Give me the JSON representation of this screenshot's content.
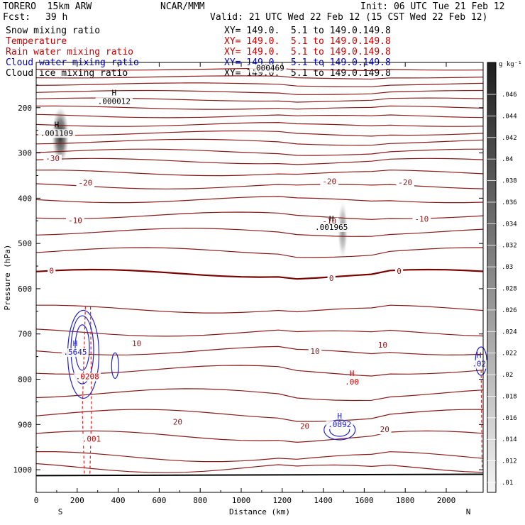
{
  "header": {
    "model": "TORERO  15km ARW",
    "center": "NCAR/MMM",
    "init": "Init: 06 UTC Tue 21 Feb 12",
    "fcst_label": "Fcst:",
    "fcst_value": "39 h",
    "valid": "Valid: 21 UTC Wed 22 Feb 12 (15 CST Wed 22 Feb 12)"
  },
  "fields": [
    {
      "name": "Snow mixing ratio",
      "xy": "XY= 149.0.  5.1 to 149.0.149.8",
      "color": "#000000"
    },
    {
      "name": "Temperature",
      "xy": "XY= 149.0.  5.1 to 149.0.149.8",
      "color": "#cc0000"
    },
    {
      "name": "Rain water mixing ratio",
      "xy": "XY= 149.0.  5.1 to 149.0.149.8",
      "color": "#cc0000"
    },
    {
      "name": "Cloud water mixing ratio",
      "xy": "XY= 149.0.  5.1 to 149.0.149.8",
      "color": "#0000cc"
    },
    {
      "name": "Cloud ice mixing ratio",
      "xy": "XY= 149.0.  5.1 to 149.0.149.8",
      "color": "#000000"
    }
  ],
  "colors": {
    "isotherm": "#8b1a1a",
    "zero_isotherm": "#7a0000",
    "cloud_water": "#2222cc",
    "rain_water": "#dd2222",
    "label_red": "#cc0000"
  },
  "chart_data": {
    "type": "line",
    "xlabel": "Distance (km)",
    "ylabel": "Pressure (hPa)",
    "xlim": [
      0,
      2180
    ],
    "ylim": [
      1050,
      100
    ],
    "y_scale": "linear, inverted",
    "x_ticks": [
      0,
      200,
      400,
      600,
      800,
      1000,
      1200,
      1400,
      1600,
      1800,
      2000
    ],
    "y_ticks": [
      200,
      300,
      400,
      500,
      600,
      700,
      800,
      900,
      1000
    ],
    "x_end_labels": {
      "left": "S",
      "right": "N"
    },
    "grid": false,
    "isotherm_pressures_left": [
      115,
      132,
      148,
      165,
      182,
      200,
      218,
      237,
      256,
      275,
      297,
      318,
      344,
      373,
      403,
      438,
      474,
      517,
      566,
      645,
      696,
      737,
      779,
      831,
      877,
      925,
      971,
      995
    ],
    "temperature_labels": [
      {
        "x": 80,
        "p": 318,
        "text": "-30"
      },
      {
        "x": 240,
        "p": 372,
        "text": "-20"
      },
      {
        "x": 1430,
        "p": 369,
        "text": "-20"
      },
      {
        "x": 1800,
        "p": 371,
        "text": "-20"
      },
      {
        "x": 190,
        "p": 455,
        "text": "-10"
      },
      {
        "x": 1430,
        "p": 457,
        "text": "-10"
      },
      {
        "x": 1880,
        "p": 452,
        "text": "-10"
      },
      {
        "x": 75,
        "p": 566,
        "text": "0"
      },
      {
        "x": 1440,
        "p": 583,
        "text": "0"
      },
      {
        "x": 1770,
        "p": 567,
        "text": "0"
      },
      {
        "x": 490,
        "p": 727,
        "text": "10"
      },
      {
        "x": 1360,
        "p": 744,
        "text": "10"
      },
      {
        "x": 1690,
        "p": 730,
        "text": "10"
      },
      {
        "x": 690,
        "p": 900,
        "text": "20"
      },
      {
        "x": 1310,
        "p": 910,
        "text": "20"
      },
      {
        "x": 1700,
        "p": 917,
        "text": "20"
      }
    ],
    "snow_max_labels": [
      {
        "x": 380,
        "p": 192,
        "text": ".000012",
        "mark": "H"
      },
      {
        "x": 100,
        "p": 262,
        "text": ".001109",
        "mark": "H"
      },
      {
        "x": 1130,
        "p": 118,
        "text": ".000469",
        "mark": ""
      }
    ],
    "cloud_ice_labels": [
      {
        "x": 1440,
        "p": 470,
        "text": ".001965",
        "mark": "H"
      }
    ],
    "rain_labels": [
      {
        "x": 1540,
        "p": 812,
        "text": ".00",
        "mark": "H"
      },
      {
        "x": 270,
        "p": 938,
        "text": ".001",
        "mark": ""
      },
      {
        "x": 250,
        "p": 800,
        "text": ".0208",
        "mark": ""
      }
    ],
    "cloud_water_labels": [
      {
        "x": 190,
        "p": 746,
        "text": ".5645",
        "mark": "H"
      },
      {
        "x": 1480,
        "p": 906,
        "text": ".0892",
        "mark": "H"
      },
      {
        "x": 2160,
        "p": 772,
        "text": ".02",
        "mark": "H"
      }
    ],
    "colorbar": {
      "unit": "g kg⁻¹",
      "ticks": [
        ".046",
        ".044",
        ".042",
        ".04",
        ".038",
        ".036",
        ".034",
        ".032",
        ".03",
        ".028",
        ".026",
        ".024",
        ".022",
        ".02",
        ".018",
        ".016",
        ".014",
        ".012",
        ".01"
      ]
    }
  }
}
